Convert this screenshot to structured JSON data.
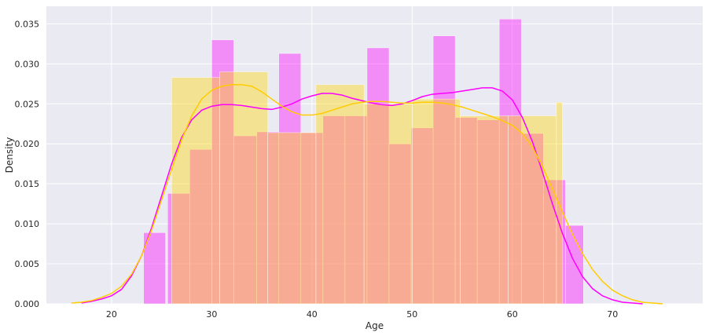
{
  "chart_data": {
    "type": "bar",
    "xlabel": "Age",
    "ylabel": "Density",
    "xlim": [
      13.5,
      79
    ],
    "ylim": [
      0,
      0.0372
    ],
    "xticks": [
      20,
      30,
      40,
      50,
      60,
      70
    ],
    "yticks": [
      0.0,
      0.005,
      0.01,
      0.015,
      0.02,
      0.025,
      0.03,
      0.035
    ],
    "ytick_labels": [
      "0.000",
      "0.005",
      "0.010",
      "0.015",
      "0.020",
      "0.025",
      "0.030",
      "0.035"
    ],
    "grid": true,
    "background": "#eaeaf2",
    "series": [
      {
        "kind": "histogram",
        "color": "#ff00ff",
        "bins": [
          {
            "x0": 23.2,
            "x1": 25.4,
            "y": 0.0089
          },
          {
            "x0": 25.6,
            "x1": 27.8,
            "y": 0.0138
          },
          {
            "x0": 27.8,
            "x1": 30.0,
            "y": 0.0193
          },
          {
            "x0": 30.0,
            "x1": 32.2,
            "y": 0.033
          },
          {
            "x0": 32.2,
            "x1": 34.5,
            "y": 0.021
          },
          {
            "x0": 34.5,
            "x1": 36.7,
            "y": 0.0215
          },
          {
            "x0": 36.7,
            "x1": 38.9,
            "y": 0.0313
          },
          {
            "x0": 38.9,
            "x1": 41.1,
            "y": 0.0214
          },
          {
            "x0": 41.1,
            "x1": 43.3,
            "y": 0.0235
          },
          {
            "x0": 43.3,
            "x1": 45.5,
            "y": 0.0235
          },
          {
            "x0": 45.5,
            "x1": 47.7,
            "y": 0.032
          },
          {
            "x0": 47.7,
            "x1": 49.9,
            "y": 0.02
          },
          {
            "x0": 49.9,
            "x1": 52.1,
            "y": 0.022
          },
          {
            "x0": 52.1,
            "x1": 54.3,
            "y": 0.0335
          },
          {
            "x0": 54.3,
            "x1": 56.5,
            "y": 0.0233
          },
          {
            "x0": 56.5,
            "x1": 58.7,
            "y": 0.023
          },
          {
            "x0": 58.7,
            "x1": 60.9,
            "y": 0.0356
          },
          {
            "x0": 60.9,
            "x1": 63.1,
            "y": 0.0213
          },
          {
            "x0": 63.1,
            "x1": 65.3,
            "y": 0.0155
          },
          {
            "x0": 65.3,
            "x1": 67.1,
            "y": 0.0098
          }
        ]
      },
      {
        "kind": "histogram",
        "color": "#ffd700",
        "bins": [
          {
            "x0": 26.0,
            "x1": 30.8,
            "y": 0.0283
          },
          {
            "x0": 30.8,
            "x1": 35.6,
            "y": 0.029
          },
          {
            "x0": 35.6,
            "x1": 40.4,
            "y": 0.0214
          },
          {
            "x0": 40.4,
            "x1": 45.2,
            "y": 0.0274
          },
          {
            "x0": 45.2,
            "x1": 50.0,
            "y": 0.025
          },
          {
            "x0": 50.0,
            "x1": 54.8,
            "y": 0.0256
          },
          {
            "x0": 54.8,
            "x1": 59.6,
            "y": 0.0235
          },
          {
            "x0": 59.6,
            "x1": 64.4,
            "y": 0.0235
          },
          {
            "x0": 64.4,
            "x1": 65.0,
            "y": 0.0252
          }
        ]
      },
      {
        "kind": "kde",
        "color": "#ff00ff",
        "points": [
          [
            17.0,
            0.0001
          ],
          [
            18.0,
            0.0003
          ],
          [
            19.0,
            0.0006
          ],
          [
            20.0,
            0.001
          ],
          [
            21.0,
            0.0018
          ],
          [
            22.0,
            0.0035
          ],
          [
            23.0,
            0.006
          ],
          [
            24.0,
            0.0095
          ],
          [
            25.0,
            0.0135
          ],
          [
            26.0,
            0.0175
          ],
          [
            27.0,
            0.0208
          ],
          [
            28.0,
            0.023
          ],
          [
            29.0,
            0.0242
          ],
          [
            30.0,
            0.0247
          ],
          [
            31.0,
            0.0249
          ],
          [
            32.0,
            0.0249
          ],
          [
            33.0,
            0.0248
          ],
          [
            34.0,
            0.0246
          ],
          [
            35.0,
            0.0244
          ],
          [
            36.0,
            0.0243
          ],
          [
            37.0,
            0.0246
          ],
          [
            38.0,
            0.025
          ],
          [
            39.0,
            0.0256
          ],
          [
            40.0,
            0.026
          ],
          [
            41.0,
            0.0263
          ],
          [
            42.0,
            0.0263
          ],
          [
            43.0,
            0.0261
          ],
          [
            44.0,
            0.0257
          ],
          [
            45.0,
            0.0254
          ],
          [
            46.0,
            0.0251
          ],
          [
            47.0,
            0.0249
          ],
          [
            48.0,
            0.0248
          ],
          [
            49.0,
            0.025
          ],
          [
            50.0,
            0.0254
          ],
          [
            51.0,
            0.0259
          ],
          [
            52.0,
            0.0262
          ],
          [
            53.0,
            0.0263
          ],
          [
            54.0,
            0.0264
          ],
          [
            55.0,
            0.0266
          ],
          [
            56.0,
            0.0268
          ],
          [
            57.0,
            0.027
          ],
          [
            58.0,
            0.027
          ],
          [
            59.0,
            0.0266
          ],
          [
            60.0,
            0.0255
          ],
          [
            61.0,
            0.0233
          ],
          [
            62.0,
            0.0203
          ],
          [
            63.0,
            0.0165
          ],
          [
            64.0,
            0.0125
          ],
          [
            65.0,
            0.0088
          ],
          [
            66.0,
            0.0057
          ],
          [
            67.0,
            0.0034
          ],
          [
            68.0,
            0.0019
          ],
          [
            69.0,
            0.001
          ],
          [
            70.0,
            0.0005
          ],
          [
            71.0,
            0.0002
          ],
          [
            72.0,
            0.0001
          ],
          [
            73.0,
            0.0
          ]
        ]
      },
      {
        "kind": "kde",
        "color": "#ffcc00",
        "points": [
          [
            16.0,
            0.0001
          ],
          [
            17.0,
            0.0002
          ],
          [
            18.0,
            0.0004
          ],
          [
            19.0,
            0.0008
          ],
          [
            20.0,
            0.0013
          ],
          [
            21.0,
            0.0022
          ],
          [
            22.0,
            0.0037
          ],
          [
            23.0,
            0.006
          ],
          [
            24.0,
            0.0092
          ],
          [
            25.0,
            0.013
          ],
          [
            26.0,
            0.0168
          ],
          [
            27.0,
            0.0205
          ],
          [
            28.0,
            0.0235
          ],
          [
            29.0,
            0.0256
          ],
          [
            30.0,
            0.0267
          ],
          [
            31.0,
            0.0272
          ],
          [
            32.0,
            0.0274
          ],
          [
            33.0,
            0.0274
          ],
          [
            34.0,
            0.0272
          ],
          [
            35.0,
            0.0265
          ],
          [
            36.0,
            0.0256
          ],
          [
            37.0,
            0.0247
          ],
          [
            38.0,
            0.024
          ],
          [
            39.0,
            0.0236
          ],
          [
            40.0,
            0.0236
          ],
          [
            41.0,
            0.0238
          ],
          [
            42.0,
            0.0242
          ],
          [
            43.0,
            0.0246
          ],
          [
            44.0,
            0.025
          ],
          [
            45.0,
            0.0252
          ],
          [
            46.0,
            0.0253
          ],
          [
            47.0,
            0.0253
          ],
          [
            48.0,
            0.0252
          ],
          [
            49.0,
            0.0251
          ],
          [
            50.0,
            0.0251
          ],
          [
            51.0,
            0.0252
          ],
          [
            52.0,
            0.0252
          ],
          [
            53.0,
            0.0251
          ],
          [
            54.0,
            0.0249
          ],
          [
            55.0,
            0.0246
          ],
          [
            56.0,
            0.0242
          ],
          [
            57.0,
            0.0238
          ],
          [
            58.0,
            0.0234
          ],
          [
            59.0,
            0.0229
          ],
          [
            60.0,
            0.0223
          ],
          [
            61.0,
            0.0213
          ],
          [
            62.0,
            0.0196
          ],
          [
            63.0,
            0.0172
          ],
          [
            64.0,
            0.0144
          ],
          [
            65.0,
            0.0115
          ],
          [
            66.0,
            0.0087
          ],
          [
            67.0,
            0.0063
          ],
          [
            68.0,
            0.0043
          ],
          [
            69.0,
            0.0028
          ],
          [
            70.0,
            0.0017
          ],
          [
            71.0,
            0.001
          ],
          [
            72.0,
            0.0005
          ],
          [
            73.0,
            0.0002
          ],
          [
            74.0,
            0.0001
          ],
          [
            75.0,
            0.0
          ]
        ]
      }
    ]
  }
}
